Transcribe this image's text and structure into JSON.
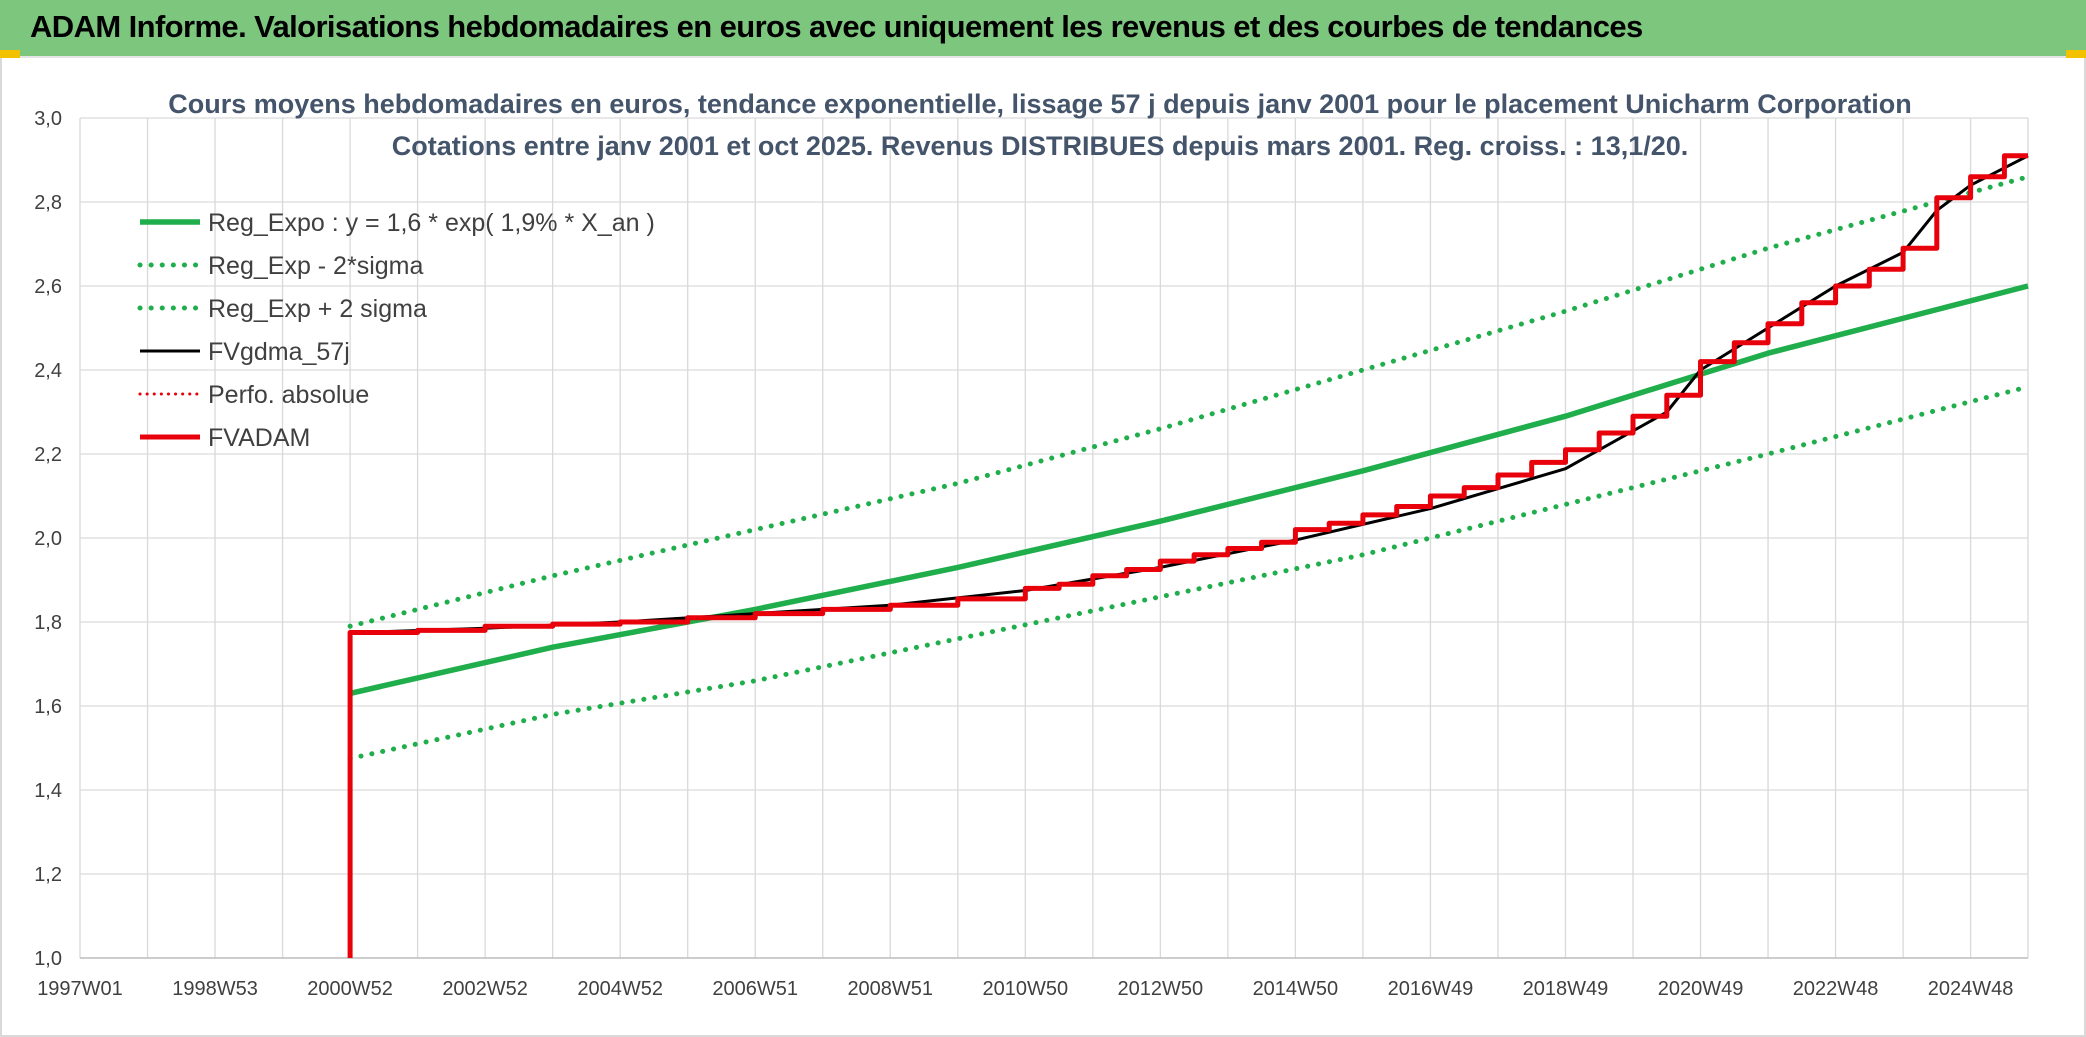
{
  "header": {
    "title": "ADAM Informe. Valorisations hebdomadaires en euros avec uniquement les revenus et des courbes de tendances"
  },
  "colors": {
    "banner": "#7dc67e",
    "reg_expo": "#1fae4b",
    "fvgdma": "#000000",
    "perfo": "#e8000b",
    "fvadam": "#e8000b",
    "grid": "#d9d9d9",
    "subtitle": "#44546a"
  },
  "chart_data": {
    "type": "line",
    "title": "Cours moyens hebdomadaires en euros, tendance exponentielle, lissage 57 j depuis janv 2001 pour le placement Unicharm Corporation",
    "subtitle": "Cotations entre janv 2001 et oct 2025. Revenus DISTRIBUES depuis mars 2001. Reg. croiss. : 13,1/20.",
    "xlabel": "",
    "ylabel": "",
    "x_tick_labels": [
      "1997W01",
      "1998W53",
      "2000W52",
      "2002W52",
      "2004W52",
      "2006W51",
      "2008W51",
      "2010W50",
      "2012W50",
      "2014W50",
      "2016W49",
      "2018W49",
      "2020W49",
      "2022W48",
      "2024W48"
    ],
    "x_tick_years": [
      1997.0,
      1999.0,
      2001.0,
      2003.0,
      2005.0,
      2007.0,
      2009.0,
      2011.0,
      2013.0,
      2015.0,
      2017.0,
      2019.0,
      2021.0,
      2023.0,
      2025.0
    ],
    "xlim": [
      1997.0,
      2025.85
    ],
    "ylim": [
      1.0,
      3.0
    ],
    "y_ticks": [
      "1,0",
      "1,2",
      "1,4",
      "1,6",
      "1,8",
      "2,0",
      "2,2",
      "2,4",
      "2,6",
      "2,8",
      "3,0"
    ],
    "y_tick_values": [
      1.0,
      1.2,
      1.4,
      1.6,
      1.8,
      2.0,
      2.2,
      2.4,
      2.6,
      2.8,
      3.0
    ],
    "grid": true,
    "legend_position": "top-left",
    "series": [
      {
        "name": "Reg_Expo : y = 1,6 * exp( 1,9% *  X_an )",
        "style": "solid-green",
        "points": [
          [
            2001.0,
            1.63
          ],
          [
            2004.0,
            1.74
          ],
          [
            2007.0,
            1.83
          ],
          [
            2010.0,
            1.93
          ],
          [
            2013.0,
            2.04
          ],
          [
            2016.0,
            2.16
          ],
          [
            2019.0,
            2.29
          ],
          [
            2022.0,
            2.44
          ],
          [
            2025.85,
            2.6
          ]
        ]
      },
      {
        "name": "Reg_Exp - 2*sigma",
        "style": "dotted-green",
        "points": [
          [
            2001.0,
            1.475
          ],
          [
            2004.0,
            1.58
          ],
          [
            2007.0,
            1.66
          ],
          [
            2010.0,
            1.76
          ],
          [
            2013.0,
            1.86
          ],
          [
            2016.0,
            1.96
          ],
          [
            2019.0,
            2.08
          ],
          [
            2022.0,
            2.2
          ],
          [
            2025.85,
            2.36
          ]
        ]
      },
      {
        "name": "Reg_Exp + 2 sigma",
        "style": "dotted-green",
        "points": [
          [
            2001.0,
            1.79
          ],
          [
            2004.0,
            1.91
          ],
          [
            2007.0,
            2.02
          ],
          [
            2010.0,
            2.13
          ],
          [
            2013.0,
            2.26
          ],
          [
            2016.0,
            2.4
          ],
          [
            2019.0,
            2.54
          ],
          [
            2022.0,
            2.69
          ],
          [
            2025.85,
            2.86
          ]
        ]
      },
      {
        "name": "FVgdma_57j",
        "style": "solid-black",
        "points": [
          [
            2001.1,
            1.775
          ],
          [
            2003.0,
            1.785
          ],
          [
            2005.0,
            1.8
          ],
          [
            2007.0,
            1.82
          ],
          [
            2009.0,
            1.84
          ],
          [
            2011.0,
            1.875
          ],
          [
            2013.0,
            1.93
          ],
          [
            2015.0,
            1.995
          ],
          [
            2017.0,
            2.07
          ],
          [
            2019.0,
            2.165
          ],
          [
            2020.5,
            2.3
          ],
          [
            2021.0,
            2.4
          ],
          [
            2022.0,
            2.5
          ],
          [
            2023.0,
            2.6
          ],
          [
            2024.0,
            2.68
          ],
          [
            2024.5,
            2.78
          ],
          [
            2025.0,
            2.84
          ],
          [
            2025.85,
            2.91
          ]
        ]
      },
      {
        "name": "Perfo. absolue",
        "style": "dotted-red",
        "points": []
      },
      {
        "name": "FVADAM",
        "style": "solid-red-step",
        "points": [
          [
            2001.0,
            1.0
          ],
          [
            2001.0,
            1.775
          ],
          [
            2002.0,
            1.775
          ],
          [
            2002.0,
            1.78
          ],
          [
            2003.0,
            1.78
          ],
          [
            2003.0,
            1.79
          ],
          [
            2004.0,
            1.79
          ],
          [
            2004.0,
            1.795
          ],
          [
            2005.0,
            1.795
          ],
          [
            2005.0,
            1.8
          ],
          [
            2006.0,
            1.8
          ],
          [
            2006.0,
            1.81
          ],
          [
            2007.0,
            1.81
          ],
          [
            2007.0,
            1.82
          ],
          [
            2008.0,
            1.82
          ],
          [
            2008.0,
            1.83
          ],
          [
            2009.0,
            1.83
          ],
          [
            2009.0,
            1.84
          ],
          [
            2010.0,
            1.84
          ],
          [
            2010.0,
            1.855
          ],
          [
            2011.0,
            1.855
          ],
          [
            2011.0,
            1.88
          ],
          [
            2011.5,
            1.88
          ],
          [
            2011.5,
            1.89
          ],
          [
            2012.0,
            1.89
          ],
          [
            2012.0,
            1.91
          ],
          [
            2012.5,
            1.91
          ],
          [
            2012.5,
            1.925
          ],
          [
            2013.0,
            1.925
          ],
          [
            2013.0,
            1.945
          ],
          [
            2013.5,
            1.945
          ],
          [
            2013.5,
            1.96
          ],
          [
            2014.0,
            1.96
          ],
          [
            2014.0,
            1.975
          ],
          [
            2014.5,
            1.975
          ],
          [
            2014.5,
            1.99
          ],
          [
            2015.0,
            1.99
          ],
          [
            2015.0,
            2.02
          ],
          [
            2015.5,
            2.02
          ],
          [
            2015.5,
            2.035
          ],
          [
            2016.0,
            2.035
          ],
          [
            2016.0,
            2.055
          ],
          [
            2016.5,
            2.055
          ],
          [
            2016.5,
            2.075
          ],
          [
            2017.0,
            2.075
          ],
          [
            2017.0,
            2.1
          ],
          [
            2017.5,
            2.1
          ],
          [
            2017.5,
            2.12
          ],
          [
            2018.0,
            2.12
          ],
          [
            2018.0,
            2.15
          ],
          [
            2018.5,
            2.15
          ],
          [
            2018.5,
            2.18
          ],
          [
            2019.0,
            2.18
          ],
          [
            2019.0,
            2.21
          ],
          [
            2019.5,
            2.21
          ],
          [
            2019.5,
            2.25
          ],
          [
            2020.0,
            2.25
          ],
          [
            2020.0,
            2.29
          ],
          [
            2020.5,
            2.29
          ],
          [
            2020.5,
            2.34
          ],
          [
            2021.0,
            2.34
          ],
          [
            2021.0,
            2.42
          ],
          [
            2021.5,
            2.42
          ],
          [
            2021.5,
            2.465
          ],
          [
            2022.0,
            2.465
          ],
          [
            2022.0,
            2.51
          ],
          [
            2022.5,
            2.51
          ],
          [
            2022.5,
            2.56
          ],
          [
            2023.0,
            2.56
          ],
          [
            2023.0,
            2.6
          ],
          [
            2023.5,
            2.6
          ],
          [
            2023.5,
            2.64
          ],
          [
            2024.0,
            2.64
          ],
          [
            2024.0,
            2.69
          ],
          [
            2024.5,
            2.69
          ],
          [
            2024.5,
            2.81
          ],
          [
            2025.0,
            2.81
          ],
          [
            2025.0,
            2.86
          ],
          [
            2025.5,
            2.86
          ],
          [
            2025.5,
            2.91
          ],
          [
            2025.85,
            2.91
          ]
        ]
      }
    ]
  }
}
